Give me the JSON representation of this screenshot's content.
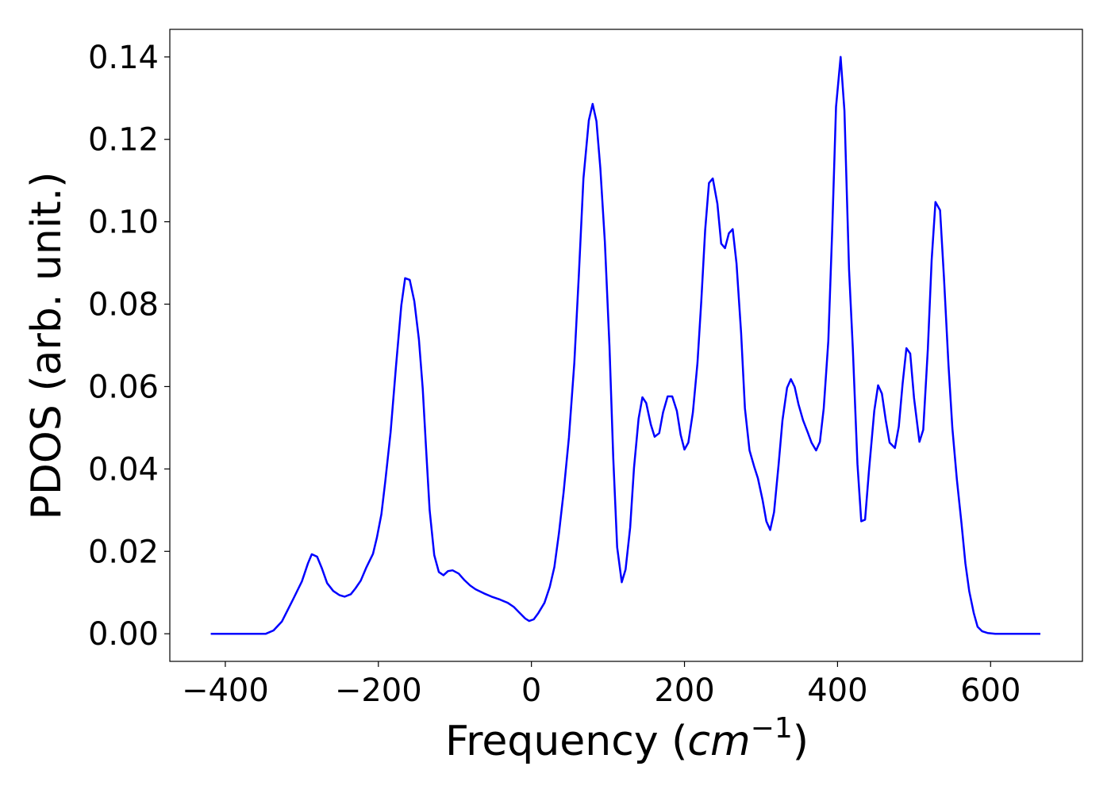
{
  "chart_data": {
    "type": "line",
    "xlabel": [
      "Frequency (",
      "cm",
      "−1",
      ")"
    ],
    "ylabel": "PDOS (arb. unit.)",
    "color": "#0000ff",
    "xlim": [
      -472.5,
      720
    ],
    "ylim": [
      -0.0067,
      0.1467
    ],
    "xticks": [
      {
        "value": -400,
        "label": "−400"
      },
      {
        "value": -200,
        "label": "−200"
      },
      0,
      200,
      400,
      600
    ],
    "yticks": [
      {
        "value": 0,
        "label": "0.00"
      },
      {
        "value": 0.02,
        "label": "0.02"
      },
      {
        "value": 0.04,
        "label": "0.04"
      },
      {
        "value": 0.06,
        "label": "0.06"
      },
      {
        "value": 0.08,
        "label": "0.08"
      },
      {
        "value": 0.1,
        "label": "0.10"
      },
      {
        "value": 0.12,
        "label": "0.12"
      },
      {
        "value": 0.14,
        "label": "0.14"
      }
    ],
    "x": [
      -419,
      -347,
      -337,
      -326,
      -311,
      -300,
      -292,
      -287,
      -280,
      -274,
      -267,
      -259,
      -251,
      -244,
      -236,
      -230,
      -223,
      -216,
      -207,
      -202,
      -196,
      -191,
      -184,
      -177,
      -170,
      -165,
      -159,
      -153,
      -147,
      -142,
      -138,
      -133,
      -127,
      -121,
      -115,
      -109,
      -103,
      -95,
      -88,
      -80,
      -73,
      -62,
      -52,
      -41,
      -31,
      -23,
      -16,
      -8,
      -3,
      3,
      9,
      17,
      24,
      30,
      36,
      42,
      49,
      56,
      62,
      68,
      75,
      80,
      85,
      90,
      96,
      102,
      107,
      112,
      118,
      123,
      129,
      134,
      140,
      145,
      150,
      156,
      161,
      167,
      172,
      178,
      184,
      190,
      195,
      200,
      205,
      211,
      217,
      222,
      227,
      232,
      237,
      243,
      248,
      253,
      258,
      263,
      268,
      274,
      279,
      285,
      291,
      296,
      302,
      307,
      312,
      317,
      323,
      328,
      334,
      339,
      344,
      349,
      355,
      361,
      366,
      372,
      377,
      382,
      388,
      393,
      398,
      404,
      409,
      415,
      420,
      426,
      431,
      436,
      441,
      448,
      453,
      458,
      463,
      468,
      475,
      480,
      485,
      490,
      495,
      500,
      507,
      512,
      518,
      523,
      528,
      534,
      539,
      545,
      550,
      556,
      562,
      567,
      572,
      578,
      583,
      589,
      596,
      606,
      665
    ],
    "values": [
      0,
      0,
      0.0008,
      0.003,
      0.0085,
      0.0127,
      0.0171,
      0.0193,
      0.0187,
      0.016,
      0.0123,
      0.0104,
      0.0094,
      0.009,
      0.0096,
      0.011,
      0.0129,
      0.016,
      0.0194,
      0.0233,
      0.029,
      0.037,
      0.0489,
      0.0649,
      0.0797,
      0.0863,
      0.0859,
      0.0807,
      0.0714,
      0.0595,
      0.046,
      0.03,
      0.0191,
      0.015,
      0.0142,
      0.0152,
      0.0154,
      0.0146,
      0.0131,
      0.0117,
      0.0108,
      0.0098,
      0.009,
      0.0083,
      0.0075,
      0.0065,
      0.0052,
      0.0037,
      0.0031,
      0.0035,
      0.005,
      0.0075,
      0.0114,
      0.0162,
      0.0245,
      0.0343,
      0.0476,
      0.0657,
      0.0874,
      0.1105,
      0.1246,
      0.1286,
      0.1244,
      0.113,
      0.0951,
      0.0699,
      0.0426,
      0.021,
      0.0125,
      0.0156,
      0.0258,
      0.0402,
      0.0522,
      0.0574,
      0.056,
      0.0508,
      0.0478,
      0.0487,
      0.0537,
      0.0576,
      0.0576,
      0.0541,
      0.0483,
      0.0447,
      0.0464,
      0.0537,
      0.0657,
      0.0807,
      0.098,
      0.1094,
      0.1105,
      0.1044,
      0.0947,
      0.0936,
      0.0972,
      0.0982,
      0.0899,
      0.073,
      0.0547,
      0.0445,
      0.0406,
      0.0377,
      0.0325,
      0.0273,
      0.0252,
      0.0295,
      0.041,
      0.0518,
      0.0597,
      0.0618,
      0.0599,
      0.0557,
      0.0518,
      0.0489,
      0.0464,
      0.0445,
      0.0466,
      0.0547,
      0.0711,
      0.098,
      0.1279,
      0.14,
      0.1269,
      0.0884,
      0.0691,
      0.0412,
      0.0273,
      0.0277,
      0.0393,
      0.0541,
      0.0603,
      0.0583,
      0.0518,
      0.0464,
      0.0451,
      0.0503,
      0.0607,
      0.0693,
      0.068,
      0.0572,
      0.0466,
      0.0495,
      0.0691,
      0.0907,
      0.1048,
      0.1028,
      0.0865,
      0.0653,
      0.0499,
      0.0374,
      0.0268,
      0.0171,
      0.0104,
      0.005,
      0.0017,
      0.0006,
      0.0002,
      0,
      0
    ]
  }
}
